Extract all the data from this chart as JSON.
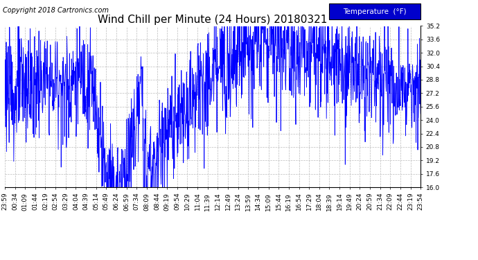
{
  "title": "Wind Chill per Minute (24 Hours) 20180321",
  "copyright_text": "Copyright 2018 Cartronics.com",
  "legend_label": "Temperature  (°F)",
  "legend_bg": "#0000cc",
  "legend_text_color": "#ffffff",
  "line_color": "#0000ff",
  "background_color": "#ffffff",
  "grid_color": "#bbbbbb",
  "ylim": [
    16.0,
    35.2
  ],
  "yticks": [
    16.0,
    17.6,
    19.2,
    20.8,
    22.4,
    24.0,
    25.6,
    27.2,
    28.8,
    30.4,
    32.0,
    33.6,
    35.2
  ],
  "x_labels": [
    "23:59",
    "00:34",
    "01:09",
    "01:44",
    "02:19",
    "02:54",
    "03:29",
    "04:04",
    "04:39",
    "05:14",
    "05:49",
    "06:24",
    "06:59",
    "07:34",
    "08:09",
    "08:44",
    "09:19",
    "09:54",
    "10:29",
    "11:04",
    "11:39",
    "12:14",
    "12:49",
    "13:24",
    "13:59",
    "14:34",
    "15:09",
    "15:44",
    "16:19",
    "16:54",
    "17:29",
    "18:04",
    "18:39",
    "19:14",
    "19:49",
    "20:24",
    "20:59",
    "21:34",
    "22:09",
    "22:44",
    "23:19",
    "23:54"
  ],
  "title_fontsize": 11,
  "copyright_fontsize": 7,
  "tick_fontsize": 6.5,
  "legend_fontsize": 7.5
}
